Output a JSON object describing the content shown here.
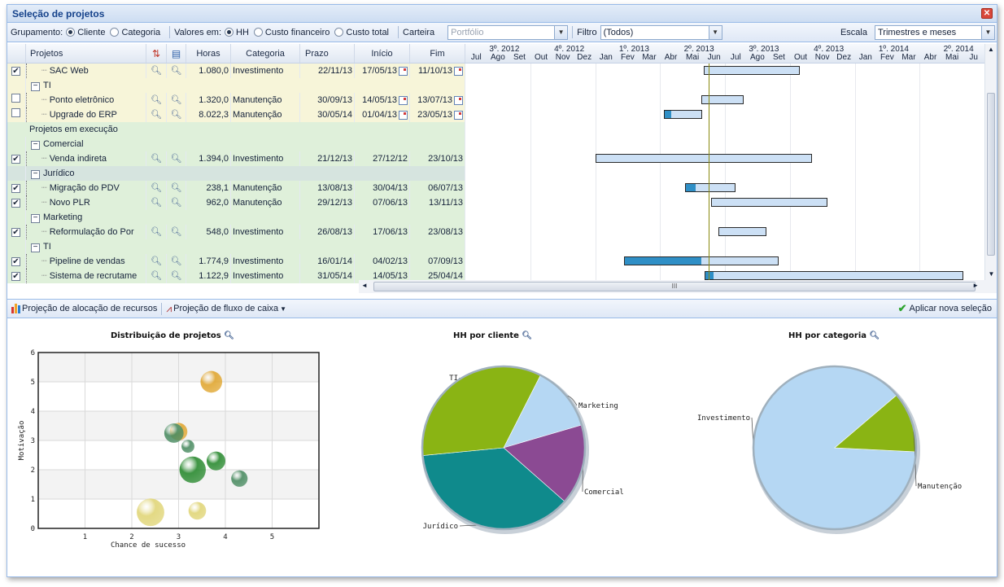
{
  "window": {
    "title": "Seleção de projetos",
    "close": "✕"
  },
  "toolbar": {
    "grouping_label": "Grupamento:",
    "grouping_options": [
      "Cliente",
      "Categoria"
    ],
    "values_label": "Valores em:",
    "values_options": [
      "HH",
      "Custo financeiro",
      "Custo total"
    ],
    "portfolio_label": "Carteira",
    "portfolio_placeholder": "Portfólio",
    "filter_label": "Filtro",
    "filter_value": "(Todos)",
    "scale_label": "Escala",
    "scale_value": "Trimestres e meses"
  },
  "grid": {
    "columns": [
      "Projetos",
      "Horas",
      "Categoria",
      "Prazo",
      "Início",
      "Fim"
    ],
    "quarters": [
      "3º. 2012",
      "4º. 2012",
      "1º. 2013",
      "2º. 2013",
      "3º. 2013",
      "4º. 2013",
      "1º. 2014",
      "2º. 2014"
    ],
    "months": [
      "Jul",
      "Ago",
      "Set",
      "Out",
      "Nov",
      "Dez",
      "Jan",
      "Fev",
      "Mar",
      "Abr",
      "Mai",
      "Jun",
      "Jul",
      "Ago",
      "Set",
      "Out",
      "Nov",
      "Dez",
      "Jan",
      "Fev",
      "Mar",
      "Abr",
      "Mai",
      "Ju"
    ],
    "rows": [
      {
        "type": "task",
        "checked": true,
        "name": "SAC Web",
        "hours": "1.080,0",
        "category": "Investimento",
        "deadline": "22/11/13",
        "start": "17/05/13",
        "end": "11/10/13",
        "editable": true,
        "bg": "#f7f5d9",
        "bar": [
          0.459,
          0.644
        ],
        "progress": 0
      },
      {
        "type": "group",
        "level": 1,
        "name": "TI",
        "bg": "#f7f5d9"
      },
      {
        "type": "task",
        "checked": false,
        "name": "Ponto eletrônico",
        "hours": "1.320,0",
        "category": "Manutenção",
        "deadline": "30/09/13",
        "start": "14/05/13",
        "end": "13/07/13",
        "editable": true,
        "bg": "#f7f5d9",
        "bar": [
          0.454,
          0.536
        ],
        "progress": 0
      },
      {
        "type": "task",
        "checked": false,
        "name": "Upgrade do ERP",
        "hours": "8.022,3",
        "category": "Manutenção",
        "deadline": "30/05/14",
        "start": "01/04/13",
        "end": "23/05/13",
        "editable": true,
        "bg": "#f7f5d9",
        "bar": [
          0.382,
          0.456
        ],
        "progress": 0.18
      },
      {
        "type": "section",
        "name": "Projetos em execução",
        "bg": "#dff0da"
      },
      {
        "type": "group",
        "level": 1,
        "name": "Comercial",
        "bg": "#dff0da"
      },
      {
        "type": "task",
        "checked": true,
        "name": "Venda indireta",
        "hours": "1.394,0",
        "category": "Investimento",
        "deadline": "21/12/13",
        "start": "27/12/12",
        "end": "23/10/13",
        "editable": false,
        "bg": "#dff0da",
        "bar": [
          0.251,
          0.667
        ],
        "progress": 0
      },
      {
        "type": "group",
        "level": 1,
        "name": "Jurídico",
        "bg": "#d6e4df"
      },
      {
        "type": "task",
        "checked": true,
        "name": "Migração do PDV",
        "hours": "238,1",
        "category": "Manutenção",
        "deadline": "13/08/13",
        "start": "30/04/13",
        "end": "06/07/13",
        "editable": false,
        "bg": "#dff0da",
        "bar": [
          0.423,
          0.52
        ],
        "progress": 0.2
      },
      {
        "type": "task",
        "checked": true,
        "name": "Novo PLR",
        "hours": "962,0",
        "category": "Manutenção",
        "deadline": "29/12/13",
        "start": "07/06/13",
        "end": "13/11/13",
        "editable": false,
        "bg": "#dff0da",
        "bar": [
          0.474,
          0.697
        ],
        "progress": 0
      },
      {
        "type": "group",
        "level": 1,
        "name": "Marketing",
        "bg": "#dff0da"
      },
      {
        "type": "task",
        "checked": true,
        "name": "Reformulação do Por",
        "hours": "548,0",
        "category": "Investimento",
        "deadline": "26/08/13",
        "start": "17/06/13",
        "end": "23/08/13",
        "editable": false,
        "bg": "#dff0da",
        "bar": [
          0.487,
          0.58
        ],
        "progress": 0
      },
      {
        "type": "group",
        "level": 1,
        "name": "TI",
        "bg": "#dff0da"
      },
      {
        "type": "task",
        "checked": true,
        "name": "Pipeline de vendas",
        "hours": "1.774,9",
        "category": "Investimento",
        "deadline": "16/01/14",
        "start": "04/02/13",
        "end": "07/09/13",
        "editable": false,
        "bg": "#dff0da",
        "bar": [
          0.305,
          0.604
        ],
        "progress": 0.5
      },
      {
        "type": "task",
        "checked": true,
        "name": "Sistema de recrutame",
        "hours": "1.122,9",
        "category": "Investimento",
        "deadline": "31/05/14",
        "start": "14/05/13",
        "end": "25/04/14",
        "editable": false,
        "bg": "#dff0da",
        "bar": [
          0.461,
          0.96
        ],
        "progress": 0.03
      }
    ],
    "today_line": 0.468,
    "scroll_glyph": "III"
  },
  "bottom_toolbar": {
    "resource_projection": "Projeção de alocação de recursos",
    "cashflow_projection": "Projeção de fluxo de caixa",
    "apply_selection": "Aplicar nova seleção"
  },
  "chart_data": [
    {
      "type": "scatter",
      "title": "Distribuição de projetos",
      "xlabel": "Chance de sucesso",
      "ylabel": "Motivação",
      "xlim": [
        0,
        6
      ],
      "ylim": [
        0,
        6
      ],
      "xticks": [
        1,
        2,
        3,
        4,
        5
      ],
      "yticks": [
        0,
        1,
        2,
        3,
        4,
        5,
        6
      ],
      "points": [
        {
          "x": 3.7,
          "y": 5.0,
          "r": 0.37,
          "color": "#e0a630"
        },
        {
          "x": 3.0,
          "y": 3.3,
          "r": 0.3,
          "color": "#e0a630"
        },
        {
          "x": 2.9,
          "y": 3.25,
          "r": 0.33,
          "color": "#4b8c62"
        },
        {
          "x": 3.2,
          "y": 2.8,
          "r": 0.22,
          "color": "#4b8c62"
        },
        {
          "x": 3.8,
          "y": 2.3,
          "r": 0.32,
          "color": "#2a8a30"
        },
        {
          "x": 3.3,
          "y": 2.0,
          "r": 0.45,
          "color": "#2a8a30"
        },
        {
          "x": 4.3,
          "y": 1.7,
          "r": 0.28,
          "color": "#4b8c62"
        },
        {
          "x": 2.4,
          "y": 0.55,
          "r": 0.47,
          "color": "#e0d577"
        },
        {
          "x": 3.4,
          "y": 0.6,
          "r": 0.3,
          "color": "#e0d577"
        }
      ]
    },
    {
      "type": "pie",
      "title": "HH por cliente",
      "slices": [
        {
          "label": "Marketing",
          "value": 13,
          "color": "#b5d7f3"
        },
        {
          "label": "Comercial",
          "value": 16,
          "color": "#8b4a93"
        },
        {
          "label": "Jurídico",
          "value": 37,
          "color": "#0f8a8c"
        },
        {
          "label": "TI",
          "value": 34,
          "color": "#8ab414"
        }
      ]
    },
    {
      "type": "pie",
      "title": "HH por categoria",
      "slices": [
        {
          "label": "Investimento",
          "value": 88,
          "color": "#b5d7f3"
        },
        {
          "label": "Manutenção",
          "value": 12,
          "color": "#8ab414"
        }
      ]
    }
  ]
}
